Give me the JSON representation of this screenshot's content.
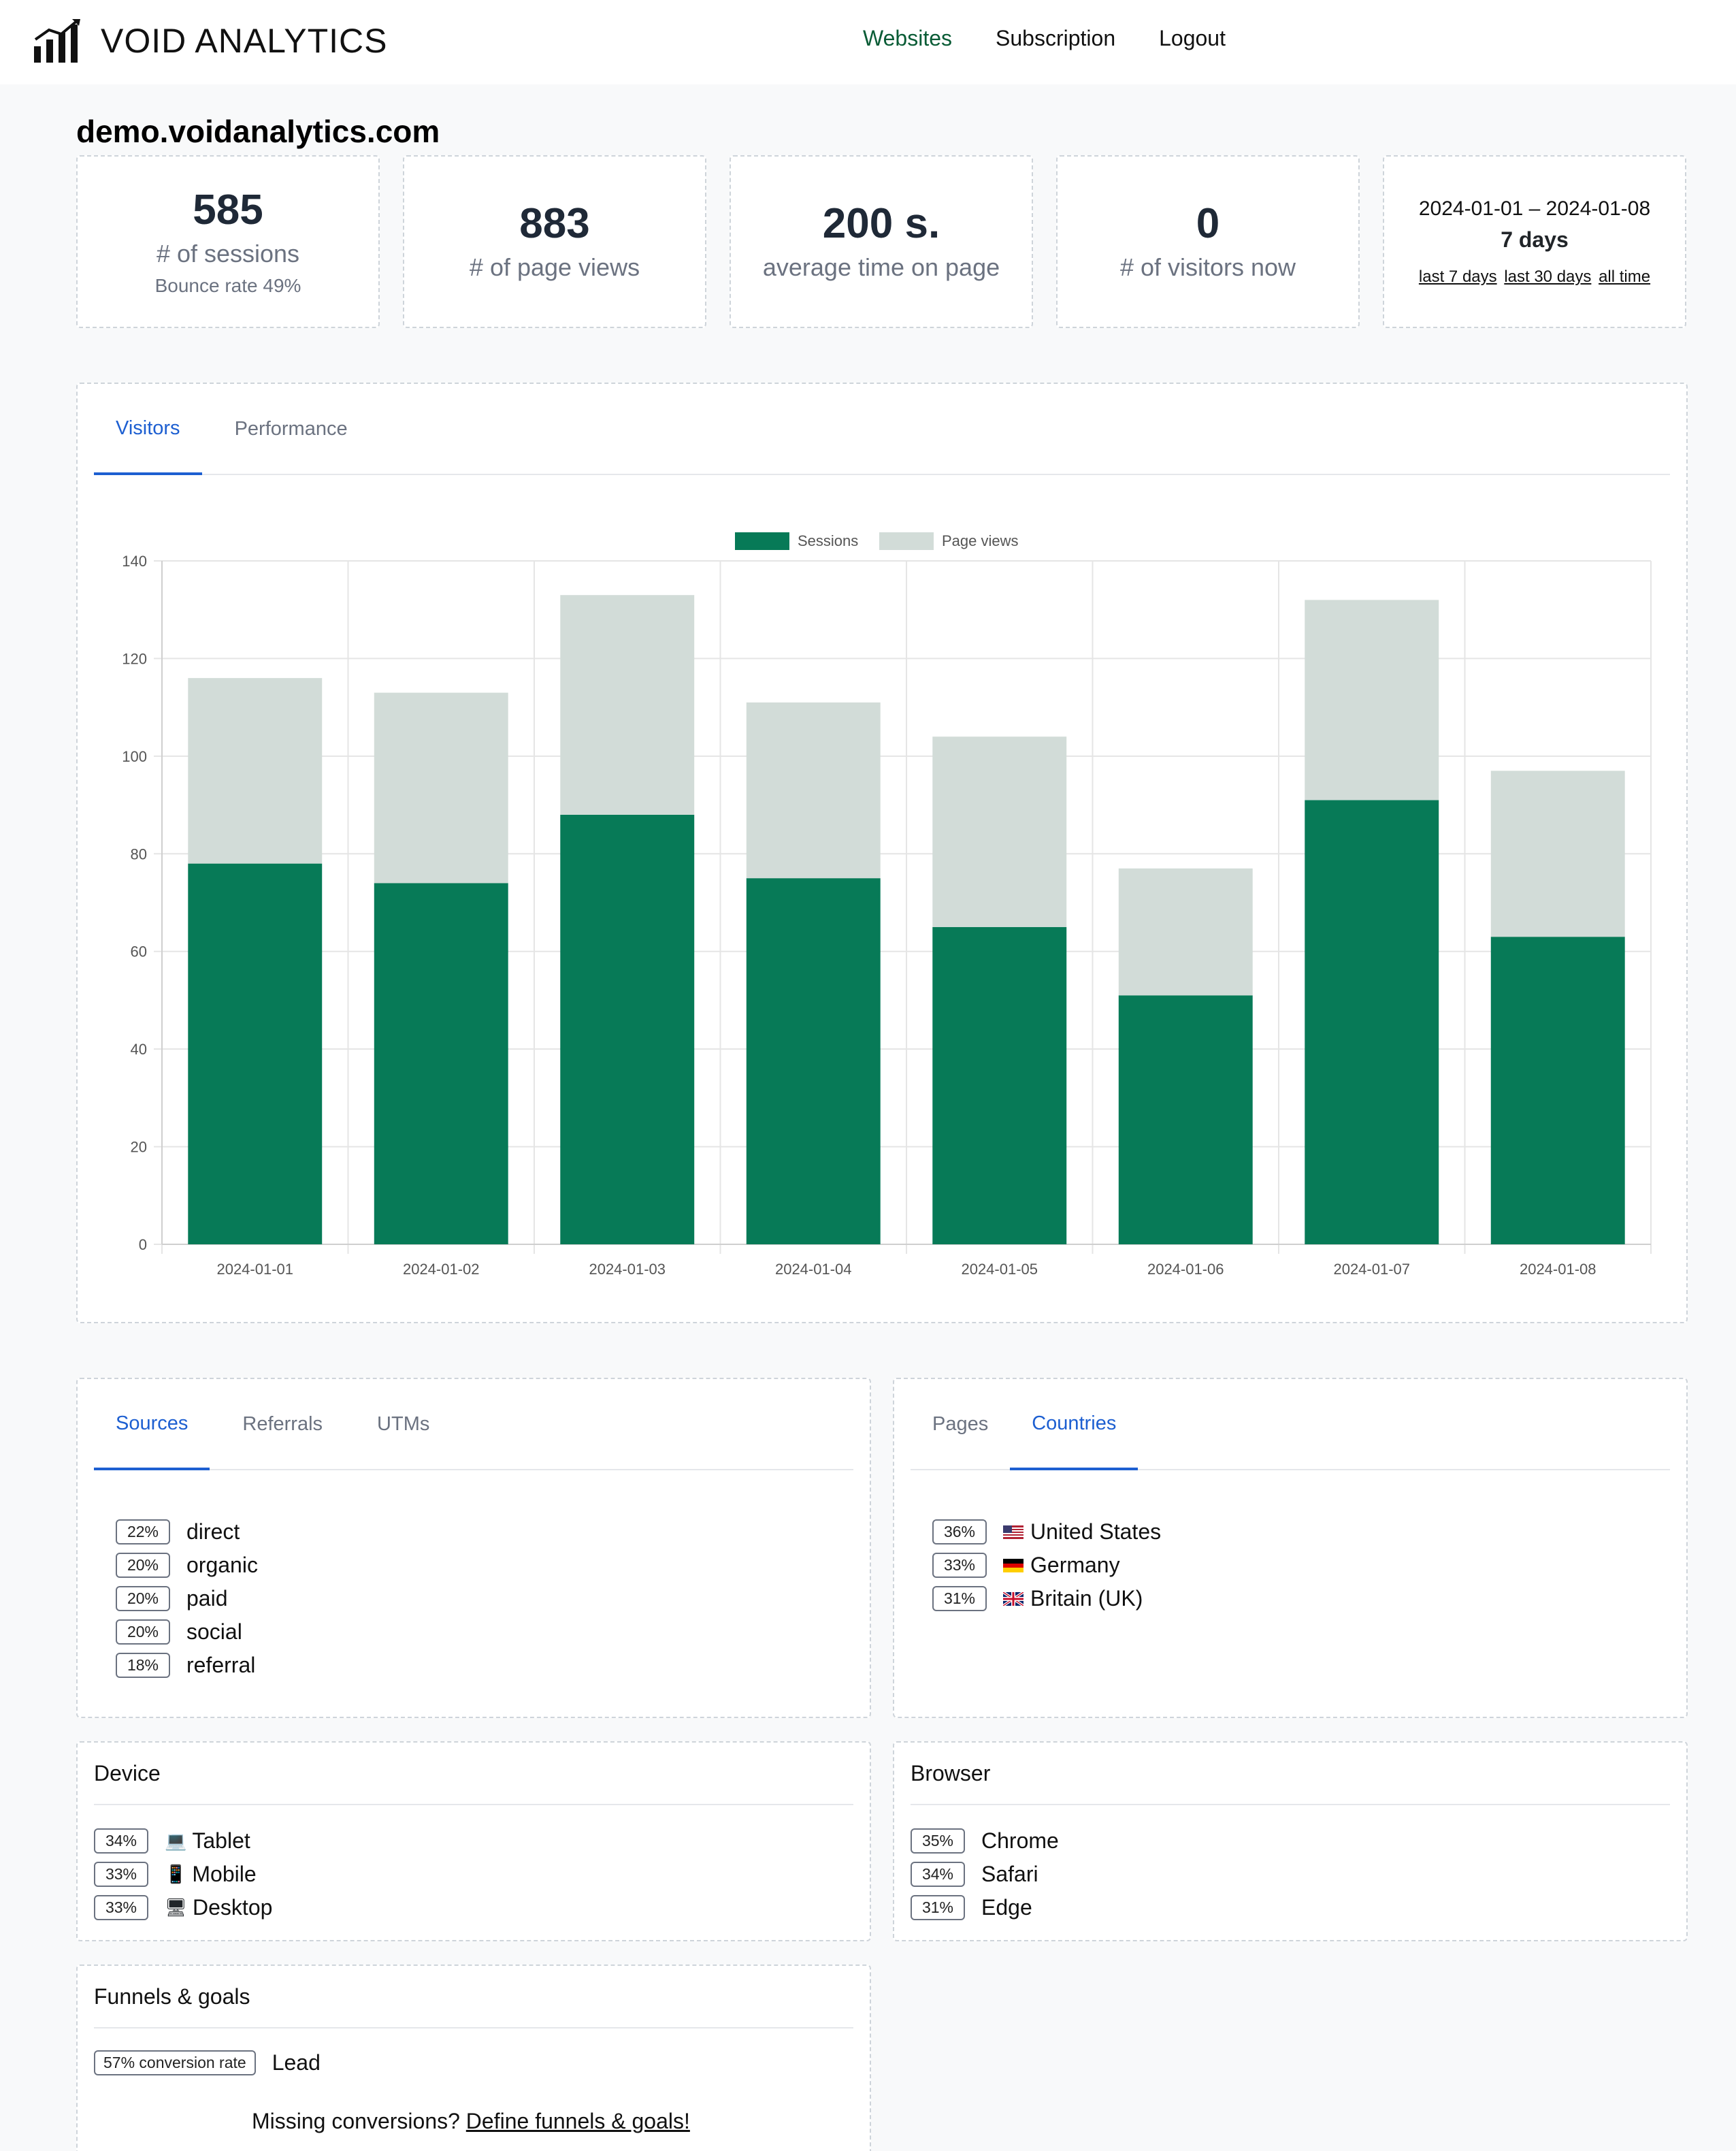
{
  "app": {
    "brand": "VOID ANALYTICS",
    "nav": {
      "websites": "Websites",
      "subscription": "Subscription",
      "logout": "Logout"
    }
  },
  "site": {
    "title": "demo.voidanalytics.com"
  },
  "stats": {
    "sessions": {
      "value": "585",
      "label": "# of sessions",
      "sub": "Bounce rate 49%"
    },
    "pageviews": {
      "value": "883",
      "label": "# of page views"
    },
    "time": {
      "value": "200 s.",
      "label": "average time on page"
    },
    "visitors_now": {
      "value": "0",
      "label": "# of visitors now"
    },
    "range": {
      "dates": "2024-01-01 – 2024-01-08",
      "days": "7 days",
      "link_7": "last 7 days",
      "link_30": "last 30 days",
      "link_all": "all time"
    }
  },
  "chart_tabs": {
    "visitors": "Visitors",
    "performance": "Performance"
  },
  "chart_data": {
    "type": "bar",
    "stacked": true,
    "categories": [
      "2024-01-01",
      "2024-01-02",
      "2024-01-03",
      "2024-01-04",
      "2024-01-05",
      "2024-01-06",
      "2024-01-07",
      "2024-01-08"
    ],
    "series": [
      {
        "name": "Sessions",
        "color": "#077a57",
        "values": [
          78,
          74,
          88,
          75,
          65,
          51,
          91,
          63
        ]
      },
      {
        "name": "Page views",
        "color": "#d2dcd8",
        "values": [
          38,
          39,
          45,
          36,
          39,
          26,
          41,
          34
        ]
      }
    ],
    "ylim": [
      0,
      140
    ],
    "yticks": [
      0,
      20,
      40,
      60,
      80,
      100,
      120,
      140
    ],
    "grid": true,
    "legend": "top-center"
  },
  "sources": {
    "tabs": {
      "sources": "Sources",
      "referrals": "Referrals",
      "utms": "UTMs"
    },
    "items": [
      {
        "pct": "22%",
        "label": "direct"
      },
      {
        "pct": "20%",
        "label": "organic"
      },
      {
        "pct": "20%",
        "label": "paid"
      },
      {
        "pct": "20%",
        "label": "social"
      },
      {
        "pct": "18%",
        "label": "referral"
      }
    ]
  },
  "countries": {
    "tabs": {
      "pages": "Pages",
      "countries": "Countries"
    },
    "items": [
      {
        "pct": "36%",
        "label": "United States",
        "flag": "us-flag-icon"
      },
      {
        "pct": "33%",
        "label": "Germany",
        "flag": "de-flag-icon"
      },
      {
        "pct": "31%",
        "label": "Britain (UK)",
        "flag": "uk-flag-icon"
      }
    ]
  },
  "device": {
    "title": "Device",
    "items": [
      {
        "pct": "34%",
        "label": "Tablet",
        "icon": "laptop-icon"
      },
      {
        "pct": "33%",
        "label": "Mobile",
        "icon": "phone-icon"
      },
      {
        "pct": "33%",
        "label": "Desktop",
        "icon": "desktop-icon"
      }
    ]
  },
  "browser": {
    "title": "Browser",
    "items": [
      {
        "pct": "35%",
        "label": "Chrome"
      },
      {
        "pct": "34%",
        "label": "Safari"
      },
      {
        "pct": "31%",
        "label": "Edge"
      }
    ]
  },
  "funnels": {
    "title": "Funnels & goals",
    "badge": "57% conversion rate",
    "goal": "Lead",
    "cta_text": "Missing conversions?",
    "cta_link": "Define funnels & goals!"
  }
}
